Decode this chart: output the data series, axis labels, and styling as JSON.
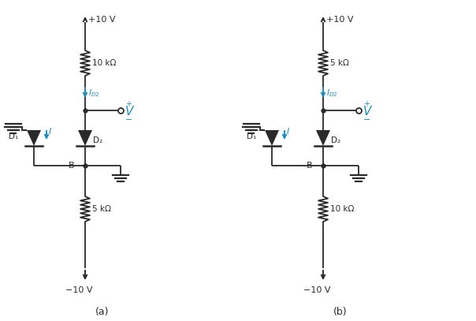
{
  "bg_color": "#ffffff",
  "line_color": "#2a2a2a",
  "blue_color": "#1a8fc1",
  "fig_width": 6.04,
  "fig_height": 4.07,
  "dpi": 100,
  "label_a": "(a)",
  "label_b": "(b)",
  "circuit_a": {
    "top_voltage": "+10 V",
    "bot_voltage": "−10 V",
    "r_top_label": "10 kΩ",
    "r_bot_label": "5 kΩ",
    "d1_label": "D₁",
    "d2_label": "D₂",
    "i_label": "I",
    "v_label": "V",
    "v_plus": "+",
    "v_minus": "−"
  },
  "circuit_b": {
    "top_voltage": "+10 V",
    "bot_voltage": "−10 V",
    "r_top_label": "5 kΩ",
    "r_bot_label": "10 kΩ",
    "d1_label": "D₁",
    "d2_label": "D₂",
    "i_label": "I",
    "v_label": "V",
    "v_plus": "+",
    "v_minus": "−"
  }
}
